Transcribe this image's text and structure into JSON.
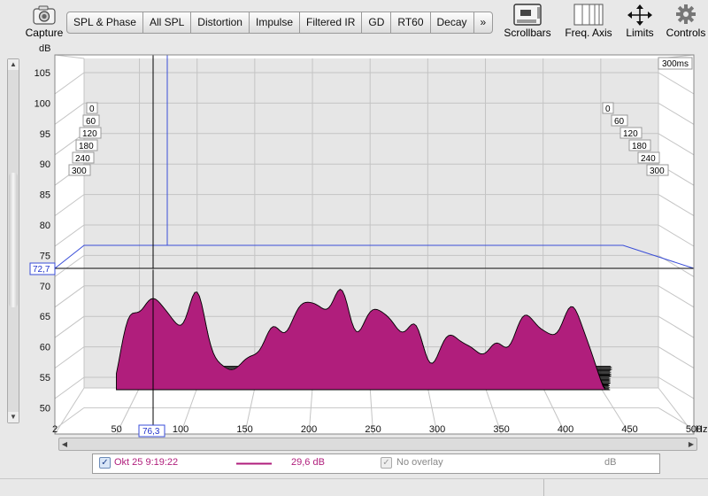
{
  "toolbar": {
    "capture_label": "Capture",
    "tabs": [
      "SPL & Phase",
      "All SPL",
      "Distortion",
      "Impulse",
      "Filtered IR",
      "GD",
      "RT60",
      "Decay",
      "»"
    ],
    "right_tools": [
      "Scrollbars",
      "Freq. Axis",
      "Limits",
      "Controls"
    ]
  },
  "plot": {
    "y_unit": "dB",
    "x_unit": "Hz",
    "y_ticks": [
      "105",
      "100",
      "95",
      "90",
      "85",
      "80",
      "75",
      "70",
      "65",
      "60",
      "55",
      "50"
    ],
    "x_ticks": [
      "2",
      "50",
      "100",
      "150",
      "200",
      "250",
      "300",
      "350",
      "400",
      "450",
      "500"
    ],
    "time_labels": [
      "0",
      "60",
      "120",
      "180",
      "240",
      "300"
    ],
    "time_end_label": "300ms",
    "cursor_y_value": "72,7",
    "cursor_x_value": "76,3",
    "fill_color": "#b01e7c",
    "line_color": "#000000"
  },
  "legend": {
    "name": "Okt 25 9:19:22",
    "value": "29,6 dB",
    "overlay": "No overlay",
    "unit": "dB",
    "series_color": "#b01e7c"
  }
}
